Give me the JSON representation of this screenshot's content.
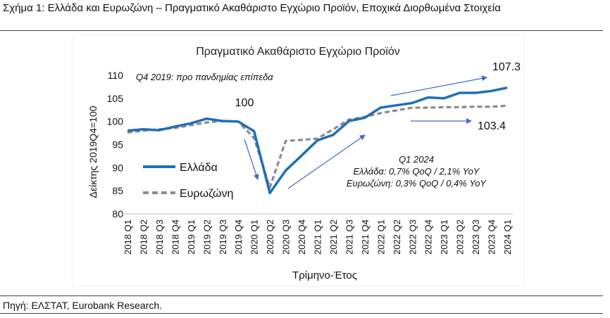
{
  "figure_title": "Σχήμα 1: Ελλάδα και Ευρωζώνη – Πραγματικό Ακαθάριστο Εγχώριο Προϊόν, Εποχικά Διορθωμένα Στοιχεία",
  "source": "Πηγή: ΕΛΣΤΑΤ, Eurobank Research.",
  "colors": {
    "greece": "#1f6fb8",
    "eurozone": "#8c8c8c",
    "arrow": "#3f6cc4"
  },
  "chart_data": {
    "type": "line",
    "title": "Πραγματικό Ακαθάριστο Εγχώριο Προϊόν",
    "xlabel": "Τρίμηνο-Έτος",
    "ylabel": "Δείκτης 2019Q4=100",
    "ylim": [
      80,
      110
    ],
    "yticks": [
      80,
      85,
      90,
      95,
      100,
      105,
      110
    ],
    "grid": false,
    "legend_position": "left",
    "categories": [
      "2018 Q1",
      "2018 Q2",
      "2018 Q3",
      "2018 Q4",
      "2019 Q1",
      "2019 Q2",
      "2019 Q3",
      "2019 Q4",
      "2020 Q1",
      "2020 Q2",
      "2020 Q3",
      "2020 Q4",
      "2021 Q1",
      "2021 Q2",
      "2021 Q3",
      "2021 Q4",
      "2022 Q1",
      "2022 Q2",
      "2022 Q3",
      "2022 Q4",
      "2023 Q1",
      "2023 Q2",
      "2023 Q3",
      "2023 Q4",
      "2024 Q1"
    ],
    "series": [
      {
        "name": "Ελλάδα",
        "style": "solid",
        "values": [
          98.0,
          98.3,
          98.1,
          98.9,
          99.6,
          100.6,
          100.1,
          100.0,
          97.9,
          84.5,
          89.4,
          92.6,
          95.9,
          97.1,
          100.1,
          100.8,
          103.0,
          103.5,
          104.0,
          105.2,
          105.0,
          106.2,
          106.2,
          106.6,
          107.3
        ]
      },
      {
        "name": "Ευρωζώνη",
        "style": "dashed",
        "values": [
          97.6,
          98.0,
          98.3,
          98.6,
          99.2,
          99.8,
          100.1,
          100.0,
          96.4,
          85.7,
          95.8,
          96.0,
          96.3,
          98.3,
          100.4,
          101.0,
          101.8,
          102.4,
          103.0,
          103.0,
          103.1,
          103.1,
          103.2,
          103.2,
          103.4
        ]
      }
    ],
    "annotations": {
      "pre_pandemic": "Q4 2019: προ πανδημίας επίπεδα",
      "label_100": "100",
      "end_greece": "107.3",
      "end_eurozone": "103.4",
      "q1_heading": "Q1 2024",
      "q1_greece": "Ελλάδα: 0,7% QoQ / 2,1% YoY",
      "q1_eurozone": "Ευρωζώνη: 0,3% QoQ / 0,4% YoY"
    }
  }
}
